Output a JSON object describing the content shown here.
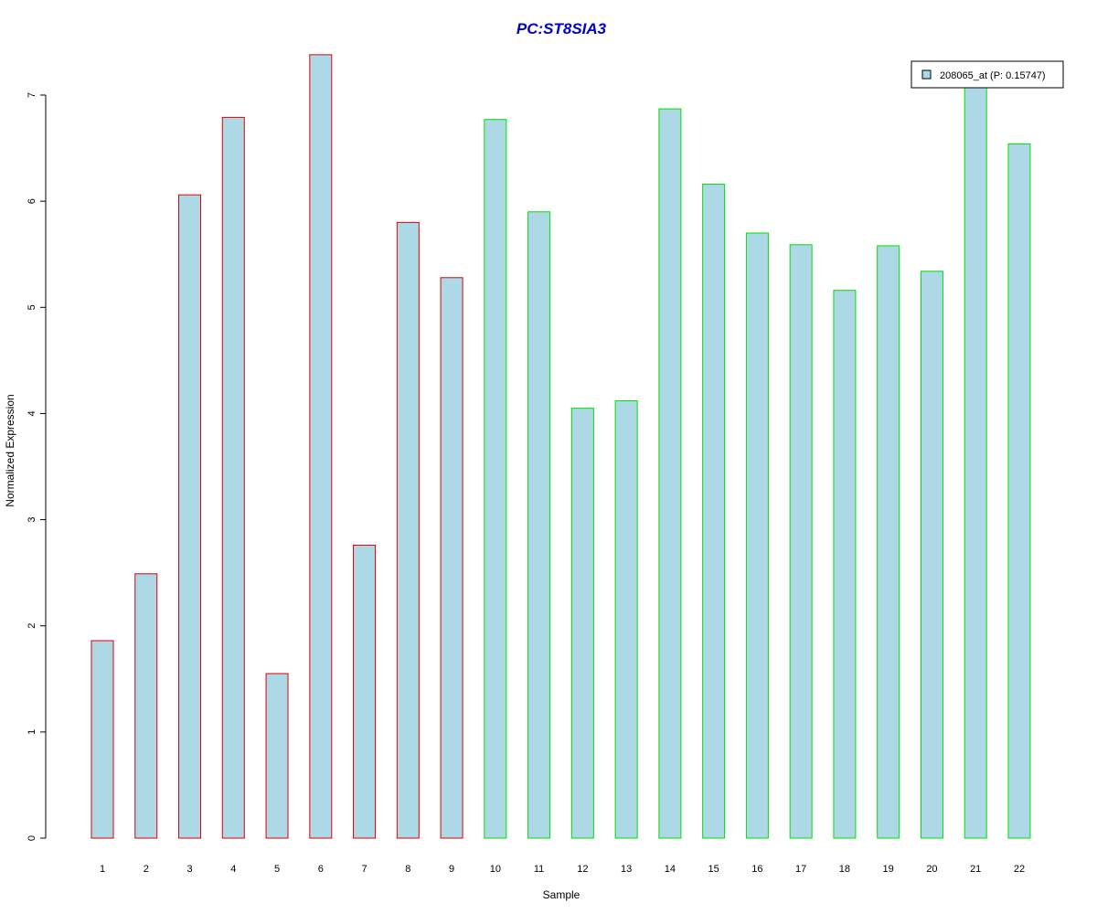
{
  "chart_data": {
    "type": "bar",
    "title": "PC:ST8SIA3",
    "xlabel": "Sample",
    "ylabel": "Normalized Expression",
    "categories": [
      "1",
      "2",
      "3",
      "4",
      "5",
      "6",
      "7",
      "8",
      "9",
      "10",
      "11",
      "12",
      "13",
      "14",
      "15",
      "16",
      "17",
      "18",
      "19",
      "20",
      "21",
      "22"
    ],
    "series": [
      {
        "name": "208065_at (P: 0.15747)",
        "values": [
          1.86,
          2.49,
          6.06,
          6.79,
          1.55,
          7.38,
          2.76,
          5.8,
          5.28,
          6.77,
          5.9,
          4.05,
          4.12,
          6.87,
          6.16,
          5.7,
          5.59,
          5.16,
          5.58,
          5.34,
          7.08,
          6.54
        ]
      }
    ],
    "groups": [
      1,
      1,
      1,
      1,
      1,
      1,
      1,
      1,
      1,
      2,
      2,
      2,
      2,
      2,
      2,
      2,
      2,
      2,
      2,
      2,
      2,
      2
    ],
    "y_ticks": [
      "0",
      "1",
      "2",
      "3",
      "4",
      "5",
      "6",
      "7"
    ],
    "ylim": [
      0,
      7.38
    ],
    "legend_placement": "top-right",
    "grid": false,
    "colors": {
      "title": "#0000cc",
      "bar_fill": "#add8e6",
      "group1_border": "#e00000",
      "group2_border": "#00e000",
      "axis": "#000000"
    }
  }
}
